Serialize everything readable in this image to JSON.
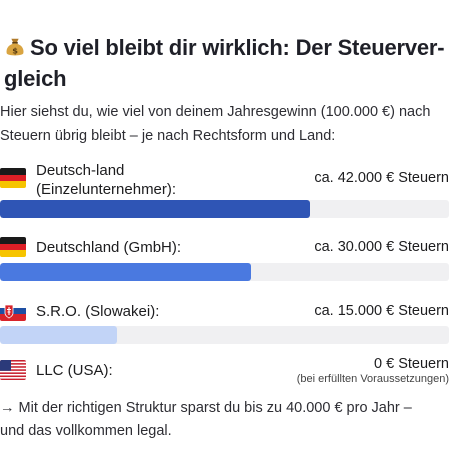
{
  "title": "So viel bleibt dir wirklich: Der Steuerver-gleich",
  "title_line1": "So viel bleibt dir wirklich: Der Steuerver-",
  "title_line2": "gleich",
  "title_icon": "money-bag-icon",
  "intro_line1": "Hier siehst du, wie viel von deinem Jahresgewinn (100.000 €) nach",
  "intro_line2": "Steuern übrig bleibt – je nach Rechtsform und Land:",
  "rows": [
    {
      "flag": "germany-flag-icon",
      "label_line1": "Deutsch-land",
      "label_line2": "(Einzelunternehmer):",
      "amount": "ca. 42.000 €  Steuern",
      "fill_fraction": 0.69,
      "fill_color": "#2f55b5"
    },
    {
      "flag": "germany-flag-icon",
      "label_line1": "Deutschland (GmbH):",
      "amount": "ca. 30.000 €  Steuern",
      "fill_fraction": 0.56,
      "fill_color": "#4a79e0"
    },
    {
      "flag": "slovakia-flag-icon",
      "label_line1": "S.R.O. (Slowakei):",
      "amount": "ca. 15.000 €  Steuern",
      "fill_fraction": 0.26,
      "fill_color": "#c2d4f7"
    },
    {
      "flag": "usa-flag-icon",
      "label_line1": "LLC (USA):",
      "amount": "0 €  Steuern",
      "note": "(bei erfüllten Voraussetzungen)"
    }
  ],
  "footer_line1": "→  Mit der richtigen Struktur sparst du bis zu 40.000 € pro Jahr –",
  "footer_line2": "und das vollkommen legal."
}
